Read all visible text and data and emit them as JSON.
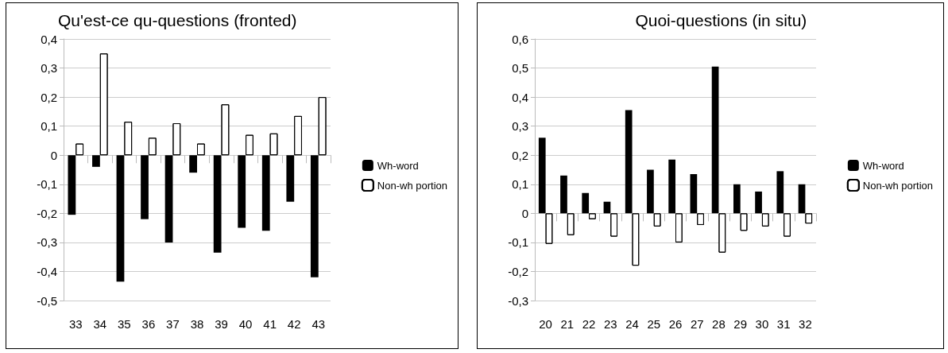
{
  "chart_data": [
    {
      "type": "bar",
      "title": "Qu'est-ce qu-questions (fronted)",
      "categories": [
        "33",
        "34",
        "35",
        "36",
        "37",
        "38",
        "39",
        "40",
        "41",
        "42",
        "43"
      ],
      "series": [
        {
          "name": "Wh-word",
          "color": "#000000",
          "values": [
            -0.205,
            -0.04,
            -0.435,
            -0.22,
            -0.3,
            -0.06,
            -0.335,
            -0.25,
            -0.26,
            -0.16,
            -0.42
          ]
        },
        {
          "name": "Non-wh portion",
          "color": "#ffffff",
          "values": [
            0.04,
            0.35,
            0.115,
            0.06,
            0.11,
            0.04,
            0.175,
            0.07,
            0.075,
            0.135,
            0.2
          ]
        }
      ],
      "ylim": [
        -0.5,
        0.4
      ],
      "yticks": [
        {
          "value": -0.5,
          "label": "-0,5"
        },
        {
          "value": -0.4,
          "label": "-0,4"
        },
        {
          "value": -0.3,
          "label": "-0,3"
        },
        {
          "value": -0.2,
          "label": "-0,2"
        },
        {
          "value": -0.1,
          "label": "-0,1"
        },
        0,
        {
          "value": 0.1,
          "label": "0,1"
        },
        {
          "value": 0.2,
          "label": "0,2"
        },
        {
          "value": 0.3,
          "label": "0,3"
        },
        {
          "value": 0.4,
          "label": "0,4"
        }
      ],
      "grid": "y",
      "legend": "right"
    },
    {
      "type": "bar",
      "title": "Quoi-questions (in situ)",
      "categories": [
        "20",
        "21",
        "22",
        "23",
        "24",
        "25",
        "26",
        "27",
        "28",
        "29",
        "30",
        "31",
        "32"
      ],
      "series": [
        {
          "name": "Wh-word",
          "color": "#000000",
          "values": [
            0.26,
            0.13,
            0.07,
            0.04,
            0.355,
            0.15,
            0.185,
            0.135,
            0.505,
            0.1,
            0.075,
            0.145,
            0.1
          ]
        },
        {
          "name": "Non-wh portion",
          "color": "#ffffff",
          "values": [
            -0.105,
            -0.075,
            -0.02,
            -0.08,
            -0.18,
            -0.045,
            -0.1,
            -0.04,
            -0.135,
            -0.06,
            -0.045,
            -0.08,
            -0.035
          ]
        }
      ],
      "ylim": [
        -0.3,
        0.6
      ],
      "yticks": [
        {
          "value": -0.3,
          "label": "-0,3"
        },
        {
          "value": -0.2,
          "label": "-0,2"
        },
        {
          "value": -0.1,
          "label": "-0,1"
        },
        0,
        {
          "value": 0.1,
          "label": "0,1"
        },
        {
          "value": 0.2,
          "label": "0,2"
        },
        {
          "value": 0.3,
          "label": "0,3"
        },
        {
          "value": 0.4,
          "label": "0,4"
        },
        {
          "value": 0.5,
          "label": "0,5"
        },
        {
          "value": 0.6,
          "label": "0,6"
        }
      ],
      "grid": "y",
      "legend": "right"
    }
  ]
}
